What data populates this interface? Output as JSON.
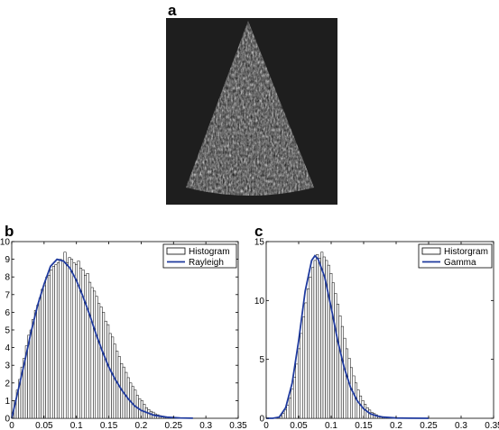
{
  "panels": {
    "a": {
      "label": "a"
    },
    "b": {
      "label": "b"
    },
    "c": {
      "label": "c"
    }
  },
  "colors": {
    "curve": "#1f3a9e",
    "bar_fill": "#ffffff",
    "bar_stroke": "#000000",
    "image_bg": "#1e1e1e"
  },
  "chart_data": [
    {
      "type": "bar",
      "panel": "b",
      "legend": {
        "histogram": "Histogram",
        "curve": "Rayleigh",
        "position": "top-right"
      },
      "xlim": [
        0,
        0.35
      ],
      "ylim": [
        0,
        10
      ],
      "xticks": [
        0,
        0.05,
        0.1,
        0.15,
        0.2,
        0.25,
        0.3,
        0.35
      ],
      "xtick_labels": [
        "0",
        "0.05",
        "0.1",
        "0.15",
        "0.2",
        "0.25",
        "0.3",
        "0.35"
      ],
      "yticks": [
        0,
        1,
        2,
        3,
        4,
        5,
        6,
        7,
        8,
        9,
        10
      ],
      "ytick_labels": [
        "0",
        "1",
        "2",
        "3",
        "4",
        "5",
        "6",
        "7",
        "8",
        "9",
        "10"
      ],
      "series": [
        {
          "kind": "histogram",
          "bin_width": 0.0035,
          "values_note": "estimated bar heights",
          "values": [
            0.3,
            1.0,
            1.6,
            2.2,
            2.9,
            3.4,
            4.1,
            4.7,
            5.0,
            5.6,
            6.1,
            6.4,
            6.8,
            7.3,
            7.5,
            8.0,
            8.1,
            8.4,
            8.6,
            8.7,
            8.8,
            9.0,
            8.9,
            9.4,
            8.8,
            9.1,
            9.0,
            8.8,
            8.7,
            8.9,
            8.5,
            8.4,
            8.1,
            8.2,
            7.7,
            7.4,
            7.2,
            6.9,
            6.5,
            6.3,
            6.0,
            5.5,
            5.3,
            4.8,
            4.6,
            4.2,
            3.8,
            3.5,
            3.1,
            2.9,
            2.6,
            2.3,
            2.0,
            1.8,
            1.6,
            1.3,
            1.1,
            1.0,
            0.8,
            0.6,
            0.5,
            0.4,
            0.35,
            0.25,
            0.2,
            0.15,
            0.12,
            0.08,
            0.06,
            0.04,
            0.03,
            0.02,
            0.01,
            0.01,
            0,
            0,
            0,
            0,
            0,
            0
          ]
        },
        {
          "kind": "curve",
          "name": "Rayleigh",
          "x": [
            0,
            0.01,
            0.02,
            0.03,
            0.04,
            0.05,
            0.06,
            0.07,
            0.08,
            0.09,
            0.1,
            0.11,
            0.12,
            0.13,
            0.14,
            0.15,
            0.16,
            0.17,
            0.18,
            0.19,
            0.2,
            0.22,
            0.24,
            0.26,
            0.28
          ],
          "y": [
            0,
            1.6,
            3.2,
            4.9,
            6.4,
            7.6,
            8.6,
            9.0,
            8.9,
            8.5,
            7.8,
            6.9,
            5.9,
            4.8,
            3.8,
            2.9,
            2.2,
            1.6,
            1.1,
            0.7,
            0.45,
            0.17,
            0.06,
            0.02,
            0.005
          ]
        }
      ]
    },
    {
      "type": "bar",
      "panel": "c",
      "legend": {
        "histogram": "Historgram",
        "curve": "Gamma",
        "position": "top-right"
      },
      "xlim": [
        0,
        0.35
      ],
      "ylim": [
        0,
        15
      ],
      "xticks": [
        0,
        0.05,
        0.1,
        0.15,
        0.2,
        0.25,
        0.3,
        0.35
      ],
      "xtick_labels": [
        "0",
        "0.05",
        "0.1",
        "0.15",
        "0.2",
        "0.25",
        "0.3",
        "0.35"
      ],
      "yticks": [
        0,
        5,
        10,
        15
      ],
      "ytick_labels": [
        "0",
        "5",
        "10",
        "15"
      ],
      "series": [
        {
          "kind": "histogram",
          "bin_width": 0.0035,
          "values_note": "estimated bar heights",
          "values": [
            0,
            0,
            0,
            0,
            0.05,
            0.1,
            0.2,
            0.4,
            0.7,
            1.1,
            1.7,
            2.5,
            3.5,
            4.6,
            5.9,
            7.2,
            8.6,
            9.8,
            11.0,
            12.0,
            12.8,
            13.4,
            13.9,
            13.6,
            14.1,
            13.7,
            13.4,
            13.0,
            12.3,
            11.5,
            10.6,
            9.7,
            8.7,
            7.8,
            6.8,
            5.9,
            5.1,
            4.3,
            3.6,
            3.0,
            2.4,
            1.9,
            1.5,
            1.2,
            0.9,
            0.7,
            0.5,
            0.4,
            0.3,
            0.2,
            0.15,
            0.1,
            0.08,
            0.05,
            0.04,
            0.03,
            0.02,
            0.01,
            0,
            0,
            0,
            0,
            0,
            0,
            0,
            0,
            0,
            0,
            0,
            0,
            0,
            0,
            0,
            0,
            0,
            0,
            0,
            0,
            0,
            0
          ]
        },
        {
          "kind": "curve",
          "name": "Gamma",
          "x": [
            0,
            0.01,
            0.02,
            0.03,
            0.04,
            0.05,
            0.06,
            0.07,
            0.075,
            0.08,
            0.09,
            0.1,
            0.11,
            0.12,
            0.13,
            0.14,
            0.15,
            0.16,
            0.17,
            0.18,
            0.2,
            0.22,
            0.25
          ],
          "y": [
            0,
            0,
            0.1,
            0.9,
            3.0,
            6.6,
            10.8,
            13.4,
            13.8,
            13.5,
            12.0,
            9.4,
            6.6,
            4.3,
            2.6,
            1.5,
            0.8,
            0.4,
            0.2,
            0.1,
            0.02,
            0.005,
            0
          ]
        }
      ]
    }
  ]
}
